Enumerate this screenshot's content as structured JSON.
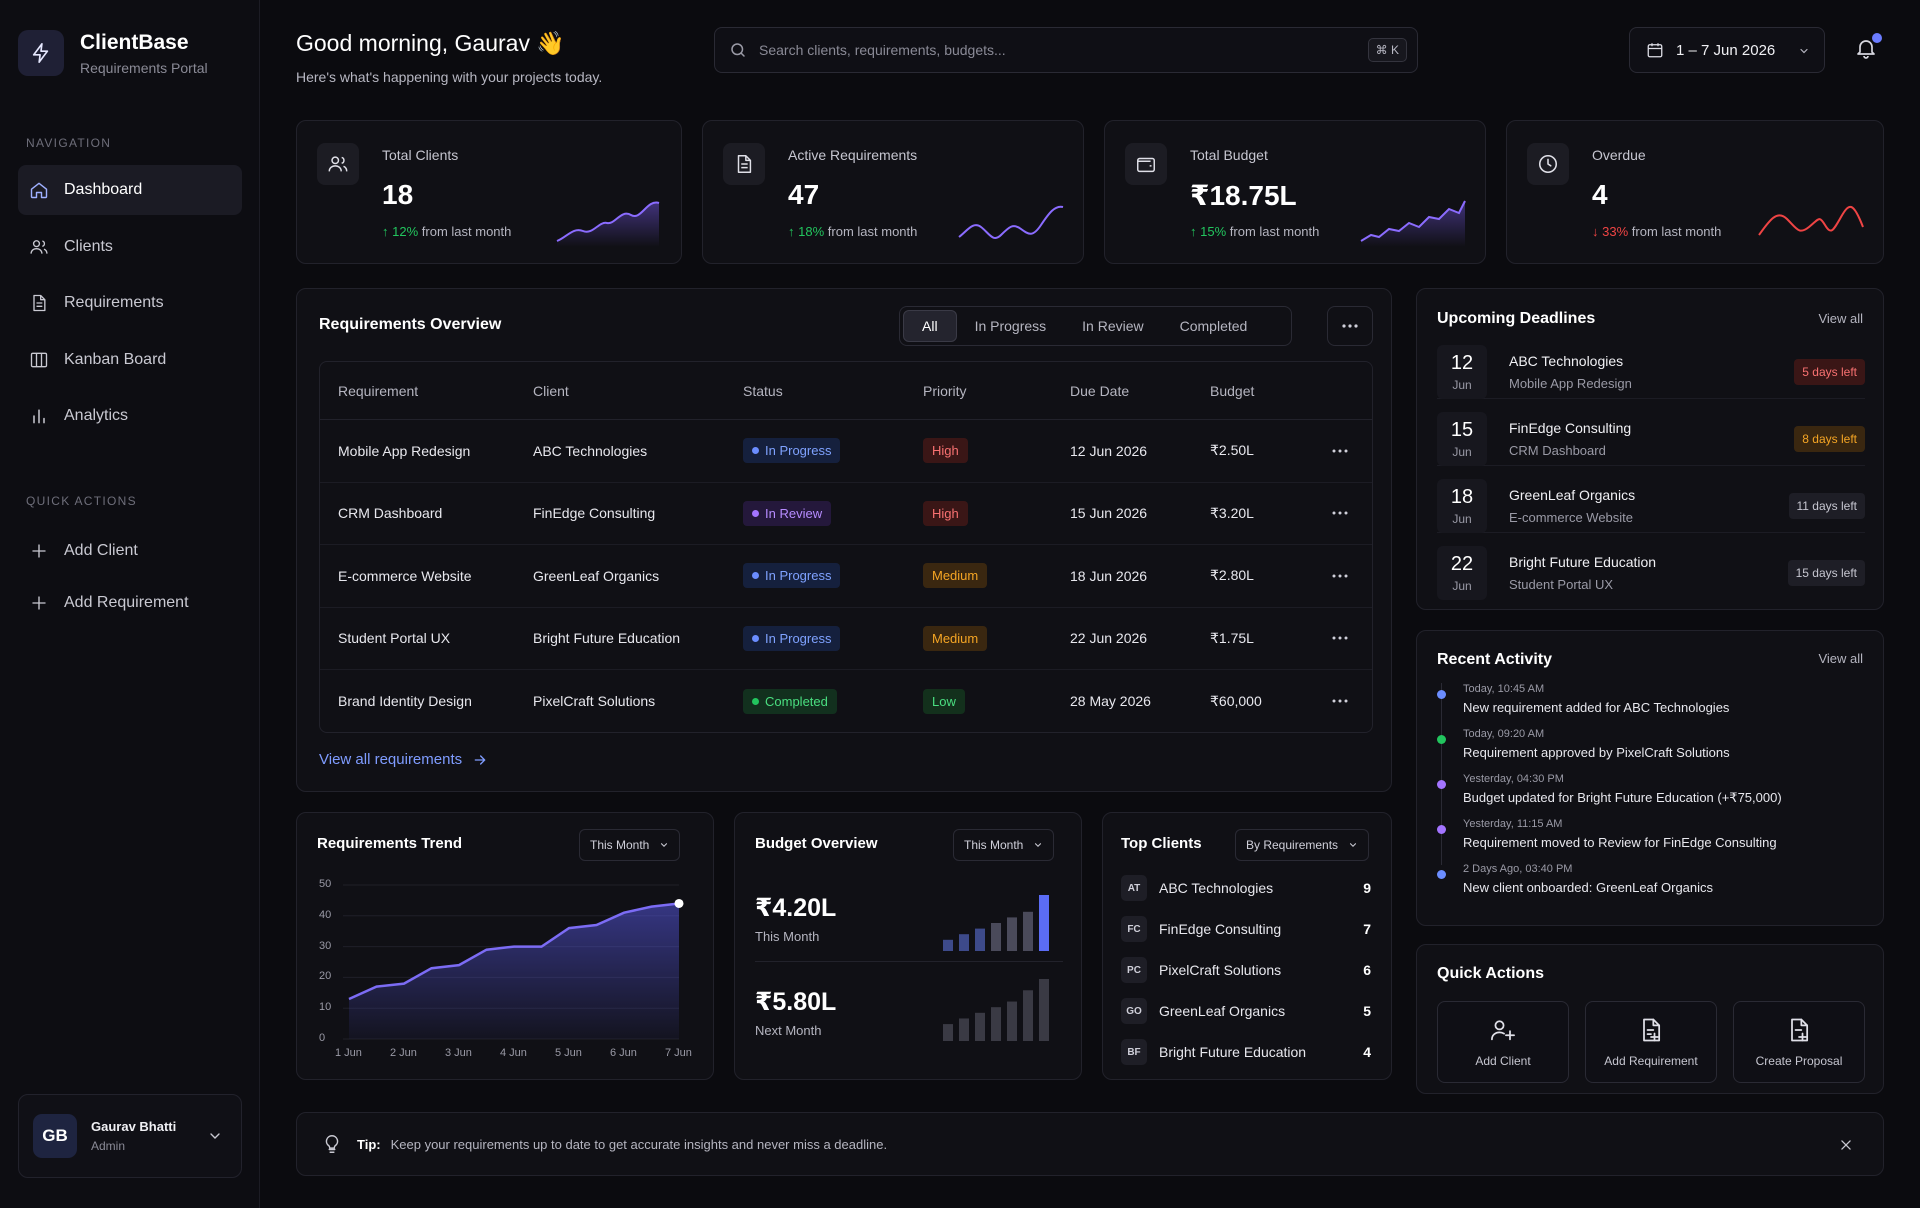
{
  "brand": {
    "title": "ClientBase",
    "subtitle": "Requirements Portal"
  },
  "sidebar": {
    "nav_label": "NAVIGATION",
    "nav": [
      {
        "label": "Dashboard",
        "icon": "home-icon",
        "active": true
      },
      {
        "label": "Clients",
        "icon": "users-icon"
      },
      {
        "label": "Requirements",
        "icon": "document-icon"
      },
      {
        "label": "Kanban Board",
        "icon": "kanban-icon"
      },
      {
        "label": "Analytics",
        "icon": "bar-chart-icon"
      }
    ],
    "qa_label": "QUICK ACTIONS",
    "quick_actions": [
      {
        "label": "Add Client",
        "icon": "plus-icon"
      },
      {
        "label": "Add Requirement",
        "icon": "plus-icon"
      }
    ],
    "user": {
      "initials": "GB",
      "name": "Gaurav Bhatti",
      "role": "Admin"
    }
  },
  "header": {
    "greeting": "Good morning, Gaurav 👋",
    "subtitle": "Here's what's happening with your projects today.",
    "search_placeholder": "Search clients, requirements, budgets...",
    "search_shortcut": "⌘ K",
    "date_range": "1 – 7 Jun 2026"
  },
  "stats": [
    {
      "label": "Total Clients",
      "value": "18",
      "change": "12%",
      "direction": "up",
      "suffix": "from last month",
      "icon": "users-icon",
      "color": "#7c5cf5"
    },
    {
      "label": "Active Requirements",
      "value": "47",
      "change": "18%",
      "direction": "up",
      "suffix": "from last month",
      "icon": "document-icon",
      "color": "#7c5cf5"
    },
    {
      "label": "Total Budget",
      "value": "₹18.75L",
      "change": "15%",
      "direction": "up",
      "suffix": "from last month",
      "icon": "wallet-icon",
      "color": "#7c5cf5"
    },
    {
      "label": "Overdue",
      "value": "4",
      "change": "33%",
      "direction": "down",
      "suffix": "from last month",
      "icon": "clock-icon",
      "color": "#ef4444"
    }
  ],
  "overview": {
    "title": "Requirements Overview",
    "filters": [
      "All",
      "In Progress",
      "In Review",
      "Completed"
    ],
    "active_filter": "All",
    "columns": [
      "Requirement",
      "Client",
      "Status",
      "Priority",
      "Due Date",
      "Budget"
    ],
    "rows": [
      {
        "requirement": "Mobile App Redesign",
        "client": "ABC Technologies",
        "status": "In Progress",
        "priority": "High",
        "due": "12 Jun 2026",
        "budget": "₹2.50L"
      },
      {
        "requirement": "CRM Dashboard",
        "client": "FinEdge Consulting",
        "status": "In Review",
        "priority": "High",
        "due": "15 Jun 2026",
        "budget": "₹3.20L"
      },
      {
        "requirement": "E-commerce Website",
        "client": "GreenLeaf Organics",
        "status": "In Progress",
        "priority": "Medium",
        "due": "18 Jun 2026",
        "budget": "₹2.80L"
      },
      {
        "requirement": "Student Portal UX",
        "client": "Bright Future Education",
        "status": "In Progress",
        "priority": "Medium",
        "due": "22 Jun 2026",
        "budget": "₹1.75L"
      },
      {
        "requirement": "Brand Identity Design",
        "client": "PixelCraft Solutions",
        "status": "Completed",
        "priority": "Low",
        "due": "28 May 2026",
        "budget": "₹60,000"
      }
    ],
    "view_all": "View all requirements"
  },
  "deadlines": {
    "title": "Upcoming Deadlines",
    "view_all": "View all",
    "items": [
      {
        "day": "12",
        "month": "Jun",
        "client": "ABC Technologies",
        "project": "Mobile App Redesign",
        "badge": "5 days left",
        "tone": "red"
      },
      {
        "day": "15",
        "month": "Jun",
        "client": "FinEdge Consulting",
        "project": "CRM Dashboard",
        "badge": "8 days left",
        "tone": "amber"
      },
      {
        "day": "18",
        "month": "Jun",
        "client": "GreenLeaf Organics",
        "project": "E-commerce Website",
        "badge": "11 days left",
        "tone": "gray"
      },
      {
        "day": "22",
        "month": "Jun",
        "client": "Bright Future Education",
        "project": "Student Portal UX",
        "badge": "15 days left",
        "tone": "gray"
      }
    ]
  },
  "activity": {
    "title": "Recent Activity",
    "view_all": "View all",
    "items": [
      {
        "time": "Today, 10:45 AM",
        "text": "New requirement added for ABC Technologies",
        "color": "#6b8dff"
      },
      {
        "time": "Today, 09:20 AM",
        "text": "Requirement approved by PixelCraft Solutions",
        "color": "#22c55e"
      },
      {
        "time": "Yesterday, 04:30 PM",
        "text": "Budget updated for Bright Future Education (+₹75,000)",
        "color": "#a374ff"
      },
      {
        "time": "Yesterday, 11:15 AM",
        "text": "Requirement moved to Review for FinEdge Consulting",
        "color": "#a374ff"
      },
      {
        "time": "2 Days Ago, 03:40 PM",
        "text": "New client onboarded: GreenLeaf Organics",
        "color": "#6b8dff"
      }
    ]
  },
  "quick_actions_panel": {
    "title": "Quick Actions",
    "items": [
      {
        "label": "Add Client",
        "icon": "user-plus-icon"
      },
      {
        "label": "Add Requirement",
        "icon": "document-plus-icon"
      },
      {
        "label": "Create Proposal",
        "icon": "document-plus-icon"
      }
    ]
  },
  "trend": {
    "title": "Requirements Trend",
    "range": "This Month",
    "chart_data": {
      "type": "area",
      "x": [
        "1 Jun",
        "1.5 Jun",
        "2 Jun",
        "2.5 Jun",
        "3 Jun",
        "3.5 Jun",
        "4 Jun",
        "4.5 Jun",
        "5 Jun",
        "5.5 Jun",
        "6 Jun",
        "6.5 Jun",
        "7 Jun"
      ],
      "categories": [
        "1 Jun",
        "2 Jun",
        "3 Jun",
        "4 Jun",
        "5 Jun",
        "6 Jun",
        "7 Jun"
      ],
      "values": [
        13,
        17,
        18,
        23,
        24,
        29,
        30,
        30,
        36,
        37,
        41,
        43,
        44
      ],
      "ylim": [
        0,
        50
      ],
      "yticks": [
        0,
        10,
        20,
        30,
        40,
        50
      ],
      "color": "#7c6cf5"
    }
  },
  "budget": {
    "title": "Budget Overview",
    "range": "This Month",
    "this_month_value": "₹4.20L",
    "this_month_label": "This Month",
    "next_month_value": "₹5.80L",
    "next_month_label": "Next Month",
    "chart_data": [
      {
        "type": "bar",
        "values": [
          2,
          3,
          4,
          5,
          6,
          7,
          10
        ],
        "highlight_color": "#5b6cf5"
      },
      {
        "type": "bar",
        "values": [
          3,
          4,
          5,
          6,
          7,
          9,
          11
        ],
        "color": "#3a3a44"
      }
    ]
  },
  "top_clients": {
    "title": "Top Clients",
    "sort": "By Requirements",
    "items": [
      {
        "initials": "AT",
        "name": "ABC Technologies",
        "count": "9"
      },
      {
        "initials": "FC",
        "name": "FinEdge Consulting",
        "count": "7"
      },
      {
        "initials": "PC",
        "name": "PixelCraft Solutions",
        "count": "6"
      },
      {
        "initials": "GO",
        "name": "GreenLeaf Organics",
        "count": "5"
      },
      {
        "initials": "BF",
        "name": "Bright Future Education",
        "count": "4"
      }
    ]
  },
  "tip": {
    "label": "Tip:",
    "text": "Keep your requirements up to date to get accurate insights and never miss a deadline."
  }
}
